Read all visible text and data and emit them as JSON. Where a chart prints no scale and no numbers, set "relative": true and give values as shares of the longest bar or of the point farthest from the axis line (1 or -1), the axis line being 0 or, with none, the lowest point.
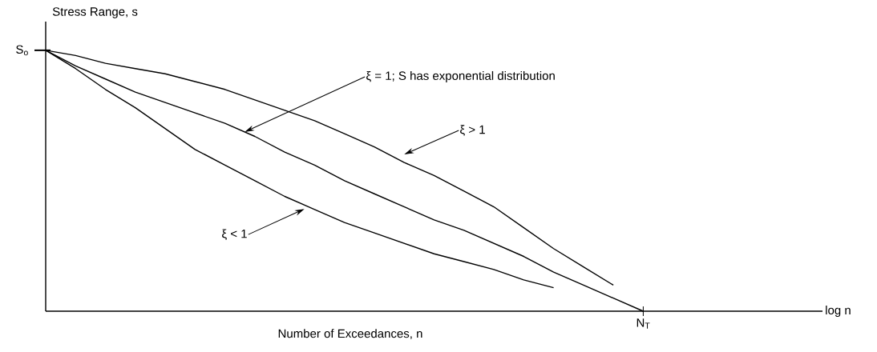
{
  "chart_data": {
    "type": "line",
    "relative": true,
    "xlabel": "Number of Exceedances, n",
    "ylabel": "Stress Range, s",
    "categories": [
      null,
      null,
      null,
      null,
      null,
      null,
      null,
      null,
      null,
      null,
      null,
      null,
      null,
      null,
      null,
      null,
      null,
      null,
      null,
      null,
      null,
      null,
      null,
      null,
      null,
      null,
      null
    ],
    "marker": "none",
    "line_style": "solid",
    "series": [
      {
        "color": "#000000",
        "values": [
          1,
          0.98,
          0.95,
          0.93,
          0.91,
          0.88,
          0.85,
          0.81,
          0.77,
          0.73,
          0.68,
          0.63,
          0.57,
          0.52,
          0.46,
          0.4,
          0.32,
          0.24,
          0.17,
          0.1,
          null,
          null,
          null,
          null,
          null,
          null,
          null
        ]
      },
      {
        "color": "#000000",
        "values": [
          1,
          0.94,
          0.89,
          0.84,
          0.8,
          0.76,
          0.72,
          0.67,
          0.61,
          0.56,
          0.5,
          0.45,
          0.4,
          0.35,
          0.31,
          0.26,
          0.21,
          0.15,
          0.1,
          0.05,
          0,
          null,
          null,
          null,
          null,
          null,
          null
        ]
      },
      {
        "color": "#000000",
        "values": [
          1,
          0.93,
          0.85,
          0.78,
          0.7,
          0.62,
          0.56,
          0.5,
          0.44,
          0.39,
          0.34,
          0.3,
          0.26,
          0.22,
          0.19,
          0.16,
          0.12,
          0.09,
          null,
          null,
          null,
          null,
          null,
          null,
          null,
          null,
          null
        ]
      }
    ],
    "annotations": [
      "ξ = 1; S has exponential distribution",
      "ξ > 1",
      "ξ < 1",
      "S$_{o}$",
      "N$_{T}$",
      "log n"
    ]
  }
}
